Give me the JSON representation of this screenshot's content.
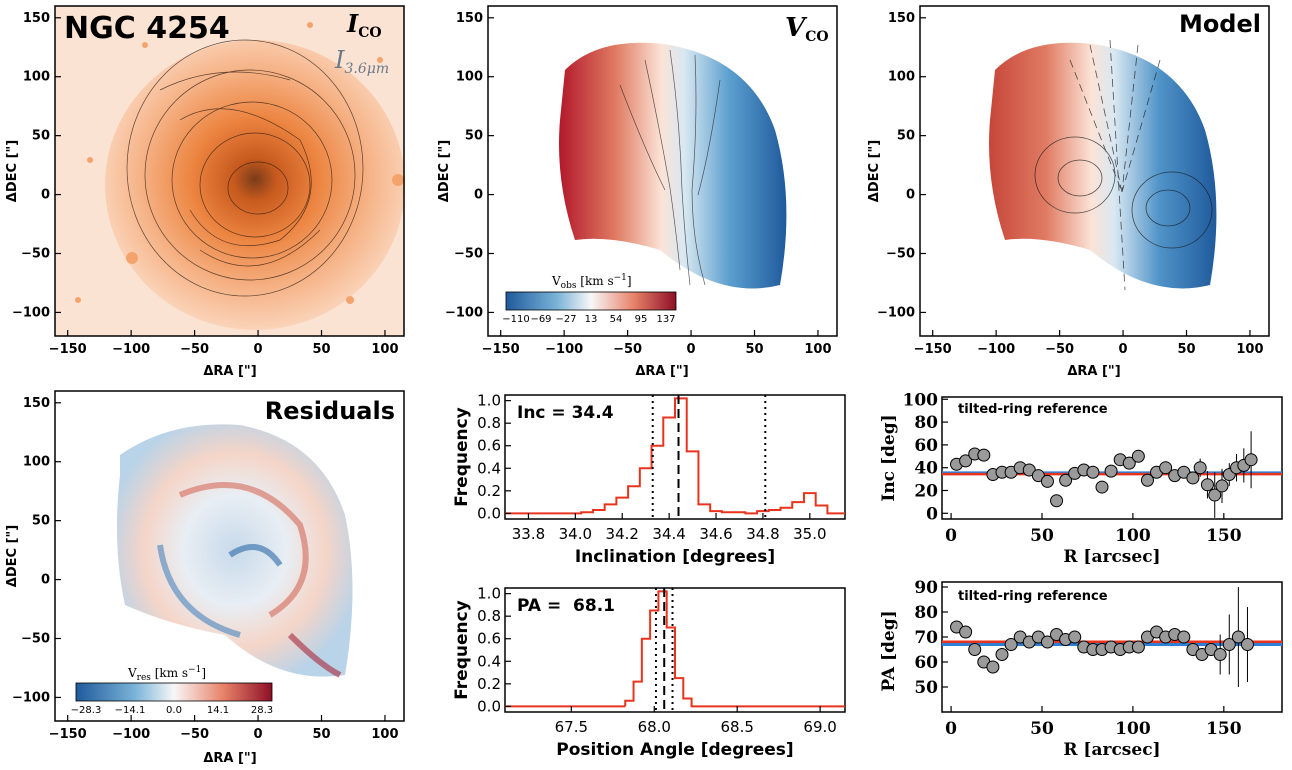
{
  "panels": {
    "ico": {
      "title": "NGC 4254",
      "label_main": "I",
      "label_main_sub": "CO",
      "label_sec": "I",
      "label_sec_sub": "3.6μm",
      "xlabel": "ΔRA [\"]",
      "ylabel": "ΔDEC [\"]",
      "xticks": [
        "−150",
        "−100",
        "−50",
        "0",
        "50",
        "100"
      ],
      "yticks": [
        "−100",
        "−50",
        "0",
        "50",
        "100",
        "150"
      ]
    },
    "vco": {
      "label": "V",
      "label_sub": "CO",
      "xlabel": "ΔRA [\"]",
      "ylabel": "ΔDEC [\"]",
      "xticks": [
        "−150",
        "−100",
        "−50",
        "0",
        "50",
        "100"
      ],
      "yticks": [
        "−100",
        "−50",
        "0",
        "50",
        "100",
        "150"
      ],
      "colorbar": {
        "label": "V",
        "label_sub": "obs",
        "label_unit": " [km s",
        "label_exp": "−1",
        "label_end": "]",
        "ticks": [
          "−110",
          "−69",
          "−27",
          "13",
          "54",
          "95",
          "137"
        ]
      }
    },
    "model": {
      "label": "Model",
      "xlabel": "ΔRA [\"]",
      "ylabel": "ΔDEC [\"]",
      "xticks": [
        "−150",
        "−100",
        "−50",
        "0",
        "50",
        "100"
      ],
      "yticks": [
        "−100",
        "−50",
        "0",
        "50",
        "100",
        "150"
      ]
    },
    "residuals": {
      "label": "Residuals",
      "xlabel": "ΔRA [\"]",
      "ylabel": "ΔDEC [\"]",
      "xticks": [
        "−150",
        "−100",
        "−50",
        "0",
        "50",
        "100"
      ],
      "yticks": [
        "−100",
        "−50",
        "0",
        "50",
        "100",
        "150"
      ],
      "colorbar": {
        "label": "V",
        "label_sub": "res",
        "label_unit": " [km s",
        "label_exp": "−1",
        "label_end": "]",
        "ticks": [
          "−28.3",
          "−14.1",
          "0.0",
          "14.1",
          "28.3"
        ]
      }
    },
    "inc_hist": {
      "annotation": "Inc = 34.4",
      "xlabel": "Inclination [degrees]",
      "ylabel": "Frequency",
      "xticks": [
        "33.8",
        "34.0",
        "34.2",
        "34.4",
        "34.6",
        "34.8",
        "35.0"
      ],
      "yticks": [
        "0.0",
        "0.2",
        "0.4",
        "0.6",
        "0.8",
        "1.0"
      ]
    },
    "pa_hist": {
      "annotation": "PA =  68.1",
      "xlabel": "Position Angle [degrees]",
      "ylabel": "Frequency",
      "xticks": [
        "67.5",
        "68.0",
        "68.5",
        "69.0"
      ],
      "yticks": [
        "0.0",
        "0.2",
        "0.4",
        "0.6",
        "0.8",
        "1.0"
      ]
    },
    "inc_ring": {
      "annotation": "tilted-ring reference",
      "xlabel": "R [arcsec]",
      "ylabel": "Inc [deg]",
      "xticks": [
        "0",
        "50",
        "100",
        "150"
      ],
      "yticks": [
        "0",
        "20",
        "40",
        "60",
        "80",
        "100"
      ]
    },
    "pa_ring": {
      "annotation": "tilted-ring reference",
      "xlabel": "R [arcsec]",
      "ylabel": "PA [deg]",
      "xticks": [
        "0",
        "50",
        "100",
        "150"
      ],
      "yticks": [
        "50",
        "60",
        "70",
        "80",
        "90"
      ]
    }
  },
  "colors": {
    "hist_line": "#e8341c",
    "ref_red": "#e8341c",
    "ref_blue": "#2f7fd6",
    "point_fill": "#9a9a9a",
    "blue_map": "#2166ac",
    "red_map": "#b2182b",
    "orange": "#f08a3c"
  },
  "chart_data": [
    {
      "type": "histogram",
      "name": "inc_hist",
      "xlim": [
        33.7,
        35.15
      ],
      "ylim": [
        -0.05,
        1.05
      ],
      "x": [
        34.0,
        34.05,
        34.1,
        34.15,
        34.2,
        34.25,
        34.3,
        34.35,
        34.4,
        34.45,
        34.5,
        34.55,
        34.6,
        34.65,
        34.7,
        34.75,
        34.8,
        34.85,
        34.9,
        34.95,
        35.0,
        35.05,
        35.1
      ],
      "values": [
        0.0,
        0.01,
        0.03,
        0.08,
        0.14,
        0.24,
        0.4,
        0.6,
        0.85,
        1.02,
        0.55,
        0.08,
        0.02,
        0.01,
        0.01,
        0.0,
        0.02,
        0.03,
        0.05,
        0.1,
        0.18,
        0.07,
        0.0
      ],
      "median": 34.44,
      "lower": 34.33,
      "upper": 34.81
    },
    {
      "type": "histogram",
      "name": "pa_hist",
      "xlim": [
        67.1,
        69.15
      ],
      "ylim": [
        -0.05,
        1.05
      ],
      "x": [
        67.85,
        67.9,
        67.95,
        68.0,
        68.05,
        68.1,
        68.15,
        68.2,
        68.25
      ],
      "values": [
        0.05,
        0.22,
        0.6,
        0.85,
        1.02,
        0.7,
        0.25,
        0.07,
        0.0
      ],
      "median": 68.06,
      "lower": 68.01,
      "upper": 68.11
    },
    {
      "type": "scatter",
      "name": "inc_ring",
      "xlim": [
        -5,
        182
      ],
      "ylim": [
        -5,
        102
      ],
      "x": [
        3,
        8,
        13,
        18,
        23,
        28,
        33,
        38,
        43,
        48,
        53,
        58,
        63,
        68,
        73,
        78,
        83,
        88,
        93,
        98,
        103,
        108,
        113,
        118,
        123,
        128,
        133,
        137,
        141,
        145,
        149,
        153,
        157,
        161,
        165
      ],
      "y": [
        43,
        46,
        52,
        51,
        34,
        36,
        36,
        40,
        38,
        33,
        28,
        11,
        29,
        35,
        38,
        36,
        23,
        37,
        47,
        44,
        50,
        29,
        36,
        40,
        33,
        36,
        31,
        40,
        25,
        16,
        24,
        34,
        40,
        42,
        47
      ],
      "err": [
        0,
        0,
        0,
        0,
        0,
        0,
        0,
        0,
        0,
        0,
        0,
        0,
        0,
        0,
        0,
        0,
        0,
        0,
        0,
        0,
        0,
        0,
        0,
        0,
        0,
        0,
        0,
        8,
        12,
        20,
        15,
        10,
        12,
        15,
        25
      ],
      "ref_red": 34.4,
      "ref_blue": 35.5
    },
    {
      "type": "scatter",
      "name": "pa_ring",
      "xlim": [
        -5,
        182
      ],
      "ylim": [
        40,
        92
      ],
      "x": [
        3,
        8,
        13,
        18,
        23,
        28,
        33,
        38,
        43,
        48,
        53,
        58,
        63,
        68,
        73,
        78,
        83,
        88,
        93,
        98,
        103,
        108,
        113,
        118,
        123,
        128,
        133,
        138,
        143,
        148,
        153,
        158,
        163
      ],
      "y": [
        74,
        72,
        65,
        60,
        58,
        63,
        67,
        70,
        68,
        70,
        68,
        71,
        69,
        70,
        66,
        65,
        65,
        66,
        65,
        66,
        66,
        70,
        72,
        70,
        71,
        70,
        65,
        63,
        65,
        63,
        67,
        70,
        67
      ],
      "err": [
        0,
        0,
        0,
        0,
        0,
        0,
        0,
        0,
        0,
        0,
        0,
        0,
        0,
        0,
        0,
        0,
        0,
        0,
        0,
        0,
        0,
        0,
        0,
        0,
        0,
        0,
        0,
        0,
        0,
        8,
        12,
        20,
        15
      ],
      "ref_red": 68.1,
      "ref_blue": 67.0
    }
  ]
}
